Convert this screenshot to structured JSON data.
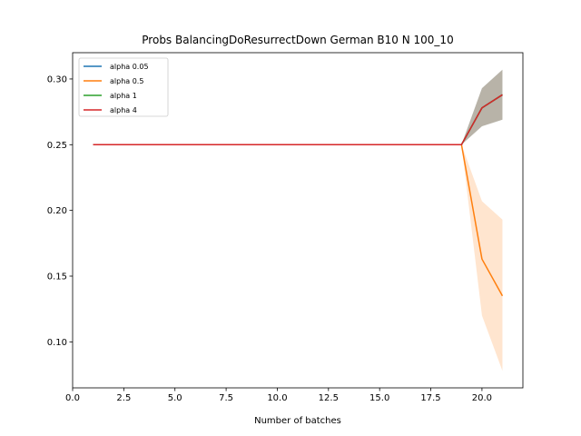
{
  "chart_data": {
    "type": "line",
    "title": "Probs BalancingDoResurrectDown German B10 N 100_10",
    "xlabel": "Number of batches",
    "ylabel": "",
    "xlim": [
      0,
      22
    ],
    "ylim": [
      0.065,
      0.32
    ],
    "xticks": [
      0.0,
      2.5,
      5.0,
      7.5,
      10.0,
      12.5,
      15.0,
      17.5,
      20.0
    ],
    "xtick_labels": [
      "0.0",
      "2.5",
      "5.0",
      "7.5",
      "10.0",
      "12.5",
      "15.0",
      "17.5",
      "20.0"
    ],
    "yticks": [
      0.1,
      0.15,
      0.2,
      0.25,
      0.3
    ],
    "ytick_labels": [
      "0.10",
      "0.15",
      "0.20",
      "0.25",
      "0.30"
    ],
    "grid": false,
    "legend_position": "top-left",
    "x": [
      1,
      2,
      3,
      4,
      5,
      6,
      7,
      8,
      9,
      10,
      11,
      12,
      13,
      14,
      15,
      16,
      17,
      18,
      19,
      20,
      21
    ],
    "series": [
      {
        "name": "alpha 0.05",
        "color": "#1f77b4",
        "values": [
          0.25,
          0.25,
          0.25,
          0.25,
          0.25,
          0.25,
          0.25,
          0.25,
          0.25,
          0.25,
          0.25,
          0.25,
          0.25,
          0.25,
          0.25,
          0.25,
          0.25,
          0.25,
          0.25,
          0.278,
          0.288
        ],
        "band_lower": [
          0.25,
          0.25,
          0.25,
          0.25,
          0.25,
          0.25,
          0.25,
          0.25,
          0.25,
          0.25,
          0.25,
          0.25,
          0.25,
          0.25,
          0.25,
          0.25,
          0.25,
          0.25,
          0.25,
          0.264,
          0.269
        ],
        "band_upper": [
          0.25,
          0.25,
          0.25,
          0.25,
          0.25,
          0.25,
          0.25,
          0.25,
          0.25,
          0.25,
          0.25,
          0.25,
          0.25,
          0.25,
          0.25,
          0.25,
          0.25,
          0.25,
          0.25,
          0.293,
          0.307
        ]
      },
      {
        "name": "alpha 0.5",
        "color": "#ff7f0e",
        "values": [
          0.25,
          0.25,
          0.25,
          0.25,
          0.25,
          0.25,
          0.25,
          0.25,
          0.25,
          0.25,
          0.25,
          0.25,
          0.25,
          0.25,
          0.25,
          0.25,
          0.25,
          0.25,
          0.25,
          0.163,
          0.135
        ],
        "band_lower": [
          0.25,
          0.25,
          0.25,
          0.25,
          0.25,
          0.25,
          0.25,
          0.25,
          0.25,
          0.25,
          0.25,
          0.25,
          0.25,
          0.25,
          0.25,
          0.25,
          0.25,
          0.25,
          0.25,
          0.12,
          0.078
        ],
        "band_upper": [
          0.25,
          0.25,
          0.25,
          0.25,
          0.25,
          0.25,
          0.25,
          0.25,
          0.25,
          0.25,
          0.25,
          0.25,
          0.25,
          0.25,
          0.25,
          0.25,
          0.25,
          0.25,
          0.25,
          0.207,
          0.193
        ]
      },
      {
        "name": "alpha 1",
        "color": "#2ca02c",
        "values": [
          0.25,
          0.25,
          0.25,
          0.25,
          0.25,
          0.25,
          0.25,
          0.25,
          0.25,
          0.25,
          0.25,
          0.25,
          0.25,
          0.25,
          0.25,
          0.25,
          0.25,
          0.25,
          0.25,
          0.278,
          0.288
        ],
        "band_lower": [
          0.25,
          0.25,
          0.25,
          0.25,
          0.25,
          0.25,
          0.25,
          0.25,
          0.25,
          0.25,
          0.25,
          0.25,
          0.25,
          0.25,
          0.25,
          0.25,
          0.25,
          0.25,
          0.25,
          0.264,
          0.269
        ],
        "band_upper": [
          0.25,
          0.25,
          0.25,
          0.25,
          0.25,
          0.25,
          0.25,
          0.25,
          0.25,
          0.25,
          0.25,
          0.25,
          0.25,
          0.25,
          0.25,
          0.25,
          0.25,
          0.25,
          0.25,
          0.293,
          0.307
        ]
      },
      {
        "name": "alpha 4",
        "color": "#d62728",
        "values": [
          0.25,
          0.25,
          0.25,
          0.25,
          0.25,
          0.25,
          0.25,
          0.25,
          0.25,
          0.25,
          0.25,
          0.25,
          0.25,
          0.25,
          0.25,
          0.25,
          0.25,
          0.25,
          0.25,
          0.278,
          0.288
        ],
        "band_lower": [
          0.25,
          0.25,
          0.25,
          0.25,
          0.25,
          0.25,
          0.25,
          0.25,
          0.25,
          0.25,
          0.25,
          0.25,
          0.25,
          0.25,
          0.25,
          0.25,
          0.25,
          0.25,
          0.25,
          0.264,
          0.269
        ],
        "band_upper": [
          0.25,
          0.25,
          0.25,
          0.25,
          0.25,
          0.25,
          0.25,
          0.25,
          0.25,
          0.25,
          0.25,
          0.25,
          0.25,
          0.25,
          0.25,
          0.25,
          0.25,
          0.25,
          0.25,
          0.293,
          0.307
        ]
      }
    ]
  }
}
